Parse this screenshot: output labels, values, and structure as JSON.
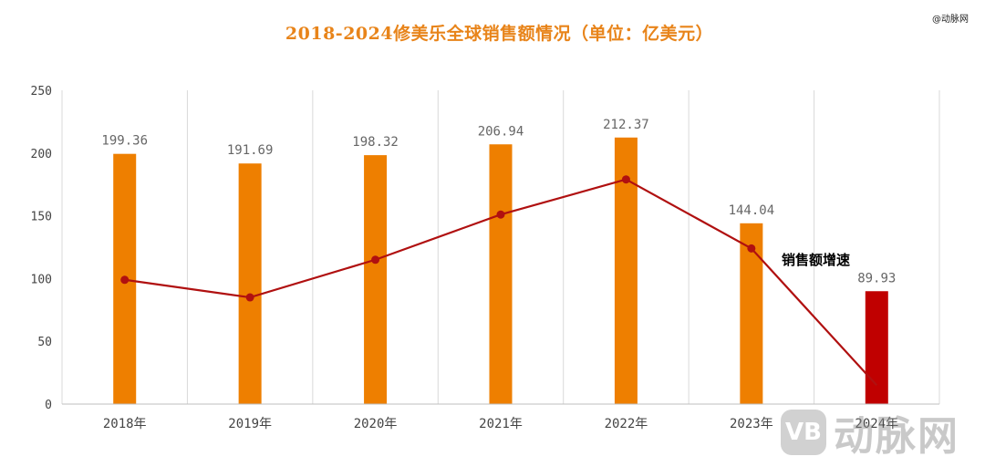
{
  "header": {
    "title": "2018-2024修美乐全球销售额情况（单位：亿美元）",
    "corner_mark": "@动脉网"
  },
  "watermark": {
    "badge": "VB",
    "text": "动脉网"
  },
  "colors": {
    "bar": "#EE7F00",
    "bar_highlight": "#C00000",
    "line": "#B01010",
    "grid": "#D9D9D9",
    "title": "#E8841A"
  },
  "chart_data": {
    "type": "bar",
    "title": "2018-2024修美乐全球销售额情况（单位：亿美元）",
    "categories": [
      "2018年",
      "2019年",
      "2020年",
      "2021年",
      "2022年",
      "2023年",
      "2024年"
    ],
    "series": [
      {
        "name": "销售额",
        "type": "bar",
        "values": [
          199.36,
          191.69,
          198.32,
          206.94,
          212.37,
          144.04,
          89.93
        ],
        "labels": [
          "199.36",
          "191.69",
          "198.32",
          "206.94",
          "212.37",
          "144.04",
          "89.93"
        ]
      },
      {
        "name": "销售额增速",
        "type": "line",
        "values": [
          99,
          85,
          115,
          151,
          179,
          124,
          15
        ]
      }
    ],
    "highlight_index": 6,
    "ylim": [
      0,
      250
    ],
    "yticks": [
      "0",
      "50",
      "100",
      "150",
      "200",
      "250"
    ],
    "grid": "vertical",
    "legend_text": "销售额增速",
    "xlabel": "",
    "ylabel": ""
  }
}
